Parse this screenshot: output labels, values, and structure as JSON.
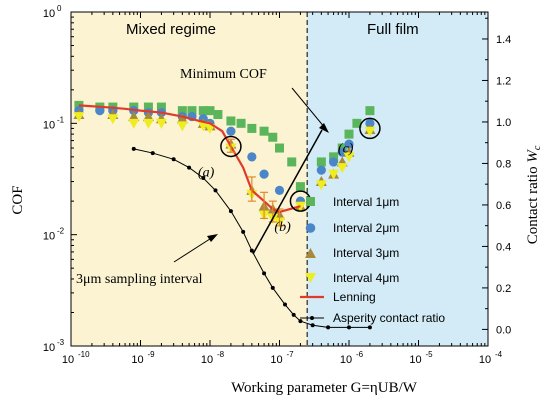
{
  "chart_data": {
    "type": "scatter",
    "xlabel": "Working parameter  G=ηUB/W",
    "ylabel_left": "COF",
    "ylabel_right": "Contact ratio",
    "ylabel_right_symbol": "W",
    "ylabel_right_subscript": "c",
    "x_scale": "log",
    "y_scale": "log",
    "xlim": [
      1e-10,
      0.0001
    ],
    "ylim": [
      0.001,
      1
    ],
    "y2lim": [
      -0.08,
      1.53
    ],
    "x_ticks": [
      1e-10,
      1e-09,
      1e-08,
      1e-07,
      1e-06,
      1e-05,
      0.0001
    ],
    "x_tick_exponents": [
      "-10",
      "-9",
      "-8",
      "-7",
      "-6",
      "-5",
      "-4"
    ],
    "y_ticks": [
      0.001,
      0.01,
      0.1,
      1
    ],
    "y_tick_exponents": [
      "-3",
      "-2",
      "-1",
      "0"
    ],
    "y2_ticks": [
      "0.0",
      "0.2",
      "0.4",
      "0.6",
      "0.8",
      "1.0",
      "1.2",
      "1.4"
    ],
    "tick_base": "10",
    "regions": [
      {
        "label": "Mixed regime",
        "x_from": 1e-10,
        "x_to": 2.5e-07,
        "color": "#fbf3d2"
      },
      {
        "label": "Full film",
        "x_from": 2.5e-07,
        "x_to": 0.0001,
        "color": "#d2ebf7"
      }
    ],
    "boundary_x": 2.5e-07,
    "legend_position": "lower-right",
    "series": [
      {
        "name": "Interval  1μm",
        "marker": "square",
        "color": "#5bb65b",
        "x": [
          1.3e-10,
          2.6e-10,
          4e-10,
          8e-10,
          1.3e-09,
          2e-09,
          4e-09,
          5.5e-09,
          8e-09,
          1e-08,
          1.3e-08,
          2e-08,
          2.8e-08,
          4e-08,
          6e-08,
          8e-08,
          1e-07,
          1.5e-07,
          2e-07,
          4e-07,
          6e-07,
          8e-07,
          1e-06,
          1.3e-06,
          2e-06
        ],
        "y": [
          0.145,
          0.14,
          0.14,
          0.14,
          0.14,
          0.14,
          0.13,
          0.13,
          0.13,
          0.13,
          0.12,
          0.105,
          0.1,
          0.09,
          0.085,
          0.075,
          0.06,
          0.045,
          0.027,
          0.045,
          0.05,
          0.06,
          0.08,
          0.1,
          0.13
        ]
      },
      {
        "name": "Interval  2μm",
        "marker": "circle",
        "color": "#4a86c8",
        "x": [
          1.3e-10,
          2.6e-10,
          4e-10,
          8e-10,
          1.3e-09,
          2e-09,
          4e-09,
          5.5e-09,
          8e-09,
          1e-08,
          2e-08,
          4e-08,
          6e-08,
          1e-07,
          2e-07,
          4e-07,
          6e-07,
          8e-07,
          1e-06,
          2e-06
        ],
        "y": [
          0.13,
          0.13,
          0.13,
          0.13,
          0.125,
          0.125,
          0.115,
          0.115,
          0.11,
          0.1,
          0.085,
          0.05,
          0.035,
          0.025,
          0.02,
          0.038,
          0.045,
          0.055,
          0.065,
          0.1
        ]
      },
      {
        "name": "Interval  3μm",
        "marker": "triangle-up",
        "color": "#a8883a",
        "x": [
          1.3e-10,
          4e-10,
          8e-10,
          1.3e-09,
          2e-09,
          4e-09,
          8e-09,
          1e-08,
          2e-08,
          4e-08,
          6e-08,
          8e-08,
          1e-07,
          2e-07,
          4e-07,
          6e-07,
          8e-07,
          1e-06,
          2e-06
        ],
        "y": [
          0.12,
          0.12,
          0.115,
          0.115,
          0.11,
          0.11,
          0.1,
          0.095,
          0.065,
          0.025,
          0.018,
          0.017,
          0.015,
          0.018,
          0.03,
          0.035,
          0.045,
          0.055,
          0.088
        ]
      },
      {
        "name": "Interval  4μm",
        "marker": "triangle-down",
        "color": "#eded22",
        "x": [
          1.3e-10,
          4e-10,
          8e-10,
          1.3e-09,
          2e-09,
          4e-09,
          8e-09,
          1e-08,
          2e-08,
          4e-08,
          6e-08,
          8e-08,
          1e-07,
          2e-07,
          4e-07,
          6e-07,
          8e-07,
          1e-06,
          2e-06
        ],
        "y": [
          0.115,
          0.11,
          0.1,
          0.1,
          0.1,
          0.095,
          0.095,
          0.09,
          0.06,
          0.023,
          0.015,
          0.014,
          0.013,
          0.018,
          0.028,
          0.035,
          0.04,
          0.05,
          0.085
        ]
      },
      {
        "name": "Lenning",
        "marker": "line",
        "color": "#e03a2a",
        "x": [
          1.3e-10,
          3e-10,
          6e-10,
          1e-09,
          2e-09,
          4e-09,
          7e-09,
          1e-08,
          1.5e-08,
          2e-08,
          3e-08,
          4e-08,
          6e-08,
          8e-08,
          1e-07,
          2e-07
        ],
        "y": [
          0.145,
          0.14,
          0.135,
          0.13,
          0.125,
          0.115,
          0.105,
          0.1,
          0.085,
          0.062,
          0.04,
          0.025,
          0.02,
          0.017,
          0.016,
          0.018
        ]
      },
      {
        "name": "Asperity contact ratio",
        "marker": "line-dot",
        "color": "#000000",
        "axis": "right",
        "x": [
          8e-10,
          1.5e-09,
          3e-09,
          5e-09,
          8e-09,
          1.2e-08,
          2e-08,
          3e-08,
          4e-08,
          6e-08,
          8e-08,
          1.2e-07,
          1.6e-07,
          2e-07,
          3e-07,
          5e-07,
          1e-06,
          2e-06
        ],
        "y": [
          0.87,
          0.85,
          0.82,
          0.78,
          0.73,
          0.67,
          0.57,
          0.47,
          0.38,
          0.27,
          0.2,
          0.12,
          0.07,
          0.04,
          0.02,
          0.01,
          0.01,
          0.01
        ]
      }
    ],
    "error_bars": [
      {
        "x": 2e-08,
        "y": 0.062,
        "low": 0.055,
        "high": 0.072
      },
      {
        "x": 4e-08,
        "y": 0.025,
        "low": 0.02,
        "high": 0.033
      },
      {
        "x": 6e-08,
        "y": 0.018,
        "low": 0.014,
        "high": 0.024
      },
      {
        "x": 8e-08,
        "y": 0.016,
        "low": 0.013,
        "high": 0.02
      },
      {
        "x": 1e-07,
        "y": 0.014,
        "low": 0.012,
        "high": 0.017
      }
    ],
    "circled_points": [
      {
        "label": "(a)",
        "x": 2e-08,
        "y": 0.062
      },
      {
        "label": "(b)",
        "x": 2e-07,
        "y": 0.02
      },
      {
        "label": "(c)",
        "x": 2e-06,
        "y": 0.09
      }
    ],
    "annotations": {
      "mixed_regime": "Mixed regime",
      "full_film": "Full film",
      "minimum_cof": "Minimum COF",
      "sampling_interval": "3μm sampling interval"
    }
  }
}
